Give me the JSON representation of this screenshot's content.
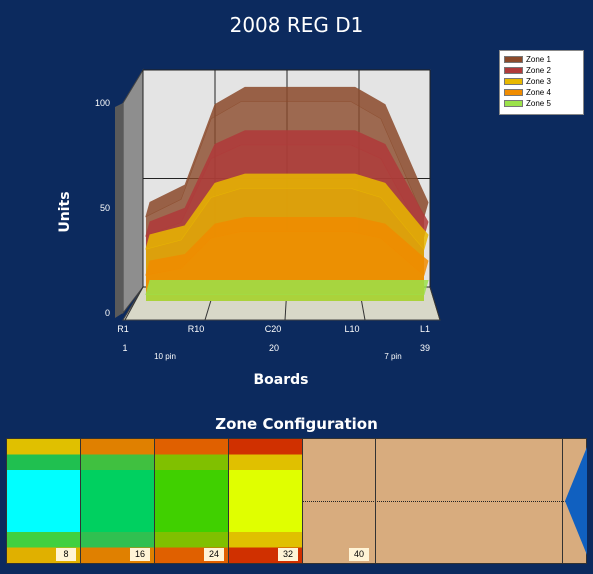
{
  "title": "2008 REG D1",
  "chart_data": {
    "type": "area",
    "title": "2008 REG D1",
    "xlabel": "Boards",
    "ylabel": "Units",
    "ylim": [
      0,
      100
    ],
    "y_ticks": [
      "0",
      "50",
      "100"
    ],
    "x_ticks": [
      "R1",
      "R10",
      "C20",
      "L10",
      "L1"
    ],
    "x_board_numbers": [
      "1",
      "20",
      "39"
    ],
    "x_pin_labels": [
      "10 pin",
      "7 pin"
    ],
    "grid": true,
    "legend_position": "top-right",
    "series": [
      {
        "name": "Zone 1",
        "color": "#8b4a2b",
        "plateau": 92,
        "side": 39
      },
      {
        "name": "Zone 2",
        "color": "#b03a3a",
        "plateau": 72,
        "side": 30
      },
      {
        "name": "Zone 3",
        "color": "#e8b800",
        "plateau": 52,
        "side": 24
      },
      {
        "name": "Zone 4",
        "color": "#f08c00",
        "plateau": 32,
        "side": 12
      },
      {
        "name": "Zone 5",
        "color": "#9be24a",
        "plateau": 3,
        "side": 3
      }
    ]
  },
  "zone_config": {
    "title": "Zone Configuration",
    "zones": [
      {
        "badge": "8",
        "colors": [
          "#e0c000",
          "#20c050",
          "#00ffff",
          "#00ffff",
          "#00ffff",
          "#00ffff",
          "#40d040",
          "#e0b000"
        ]
      },
      {
        "badge": "16",
        "colors": [
          "#e08000",
          "#40c040",
          "#00d060",
          "#00d060",
          "#00d060",
          "#00d060",
          "#30c050",
          "#e08000"
        ]
      },
      {
        "badge": "24",
        "colors": [
          "#e06000",
          "#80c000",
          "#40d000",
          "#40d000",
          "#40d000",
          "#40d000",
          "#80c000",
          "#e06000"
        ]
      },
      {
        "badge": "32",
        "colors": [
          "#d03000",
          "#e0c000",
          "#e0ff00",
          "#e0ff00",
          "#e0ff00",
          "#e0ff00",
          "#e0c000",
          "#d03000"
        ]
      }
    ],
    "empty_badge": "40"
  }
}
